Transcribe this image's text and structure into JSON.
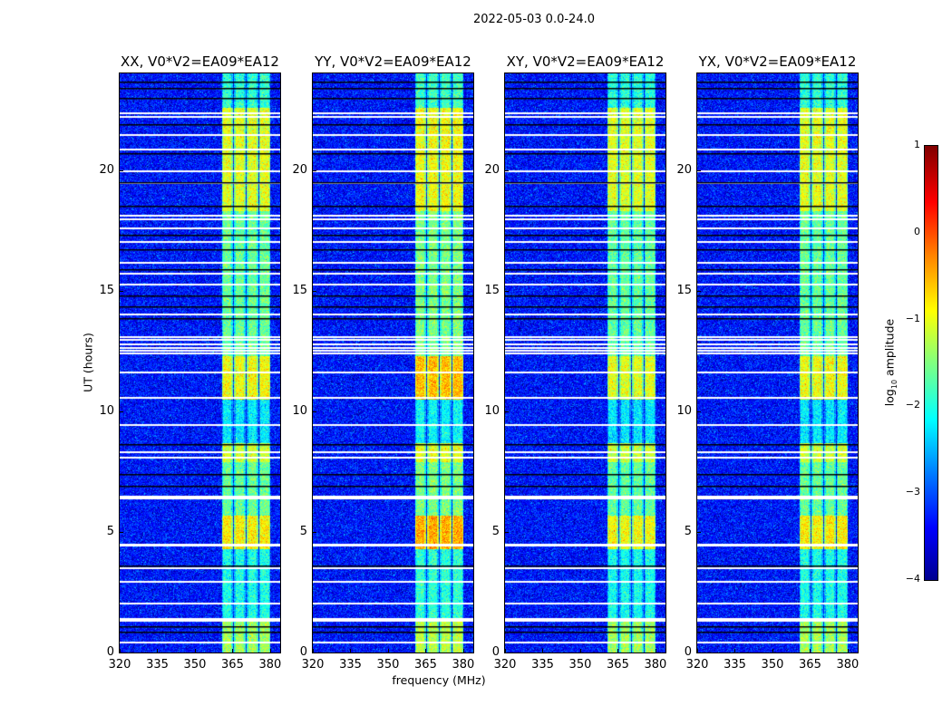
{
  "suptitle": "2022-05-03 0.0-24.0",
  "chart_data": {
    "type": "heatmap",
    "panels": [
      {
        "title": "XX, V0*V2=EA09*EA12",
        "boost": 0.0
      },
      {
        "title": "YY, V0*V2=EA09*EA12",
        "boost": 0.35
      },
      {
        "title": "XY, V0*V2=EA09*EA12",
        "boost": -0.1
      },
      {
        "title": "YX, V0*V2=EA09*EA12",
        "boost": 0.0
      }
    ],
    "xlabel": "frequency (MHz)",
    "ylabel": "UT (hours)",
    "xlim": [
      320,
      384
    ],
    "ylim": [
      0,
      24
    ],
    "xticks": [
      320,
      335,
      350,
      365,
      380
    ],
    "yticks": [
      0,
      5,
      10,
      15,
      20
    ],
    "subbands_mhz": [
      [
        360.5,
        365
      ],
      [
        365.4,
        370.1
      ],
      [
        370.4,
        375.1
      ],
      [
        375.4,
        379.9
      ]
    ],
    "background_log_amp": -3.3,
    "subband_activity": [
      {
        "from": 0,
        "to": 1.3,
        "log_amp": -1.3
      },
      {
        "from": 1.3,
        "to": 4.3,
        "log_amp": -2.0
      },
      {
        "from": 4.3,
        "to": 5.7,
        "log_amp": -0.8
      },
      {
        "from": 5.7,
        "to": 7.9,
        "log_amp": -1.6
      },
      {
        "from": 7.9,
        "to": 8.7,
        "log_amp": -1.1
      },
      {
        "from": 8.7,
        "to": 10.5,
        "log_amp": -2.2
      },
      {
        "from": 10.5,
        "to": 12.3,
        "log_amp": -0.9
      },
      {
        "from": 12.3,
        "to": 18.3,
        "log_amp": -1.6
      },
      {
        "from": 18.3,
        "to": 22.6,
        "log_amp": -1.0
      },
      {
        "from": 22.6,
        "to": 24,
        "log_amp": -1.9
      }
    ],
    "flagged_hours": [
      0.45,
      1.35,
      1.42,
      2.07,
      2.97,
      3.53,
      4.47,
      4.5,
      6.43,
      6.5,
      8.12,
      8.35,
      9.47,
      10.6,
      11.65,
      12.45,
      12.55,
      12.65,
      12.8,
      13.0,
      13.1,
      14.05,
      15.3,
      15.75,
      16.2,
      17.05,
      17.6,
      18.0,
      18.15,
      19.5,
      20.0,
      20.9,
      21.5,
      22.25,
      22.4
    ],
    "dropout_hours": [
      0.85,
      1.1,
      3.6,
      6.9,
      7.4,
      8.65,
      13.85,
      14.35,
      14.8,
      15.9,
      16.7,
      17.3,
      18.5,
      19.5,
      20.7,
      21.9,
      23.0,
      23.4,
      23.65
    ],
    "colorbar": {
      "label": "log",
      "label_sub": "10",
      "label_rest": " amplitude",
      "ticks": [
        "1",
        "0",
        "−1",
        "−2",
        "−3",
        "−4"
      ],
      "range": [
        -4,
        1
      ],
      "colormap": "jet"
    }
  }
}
